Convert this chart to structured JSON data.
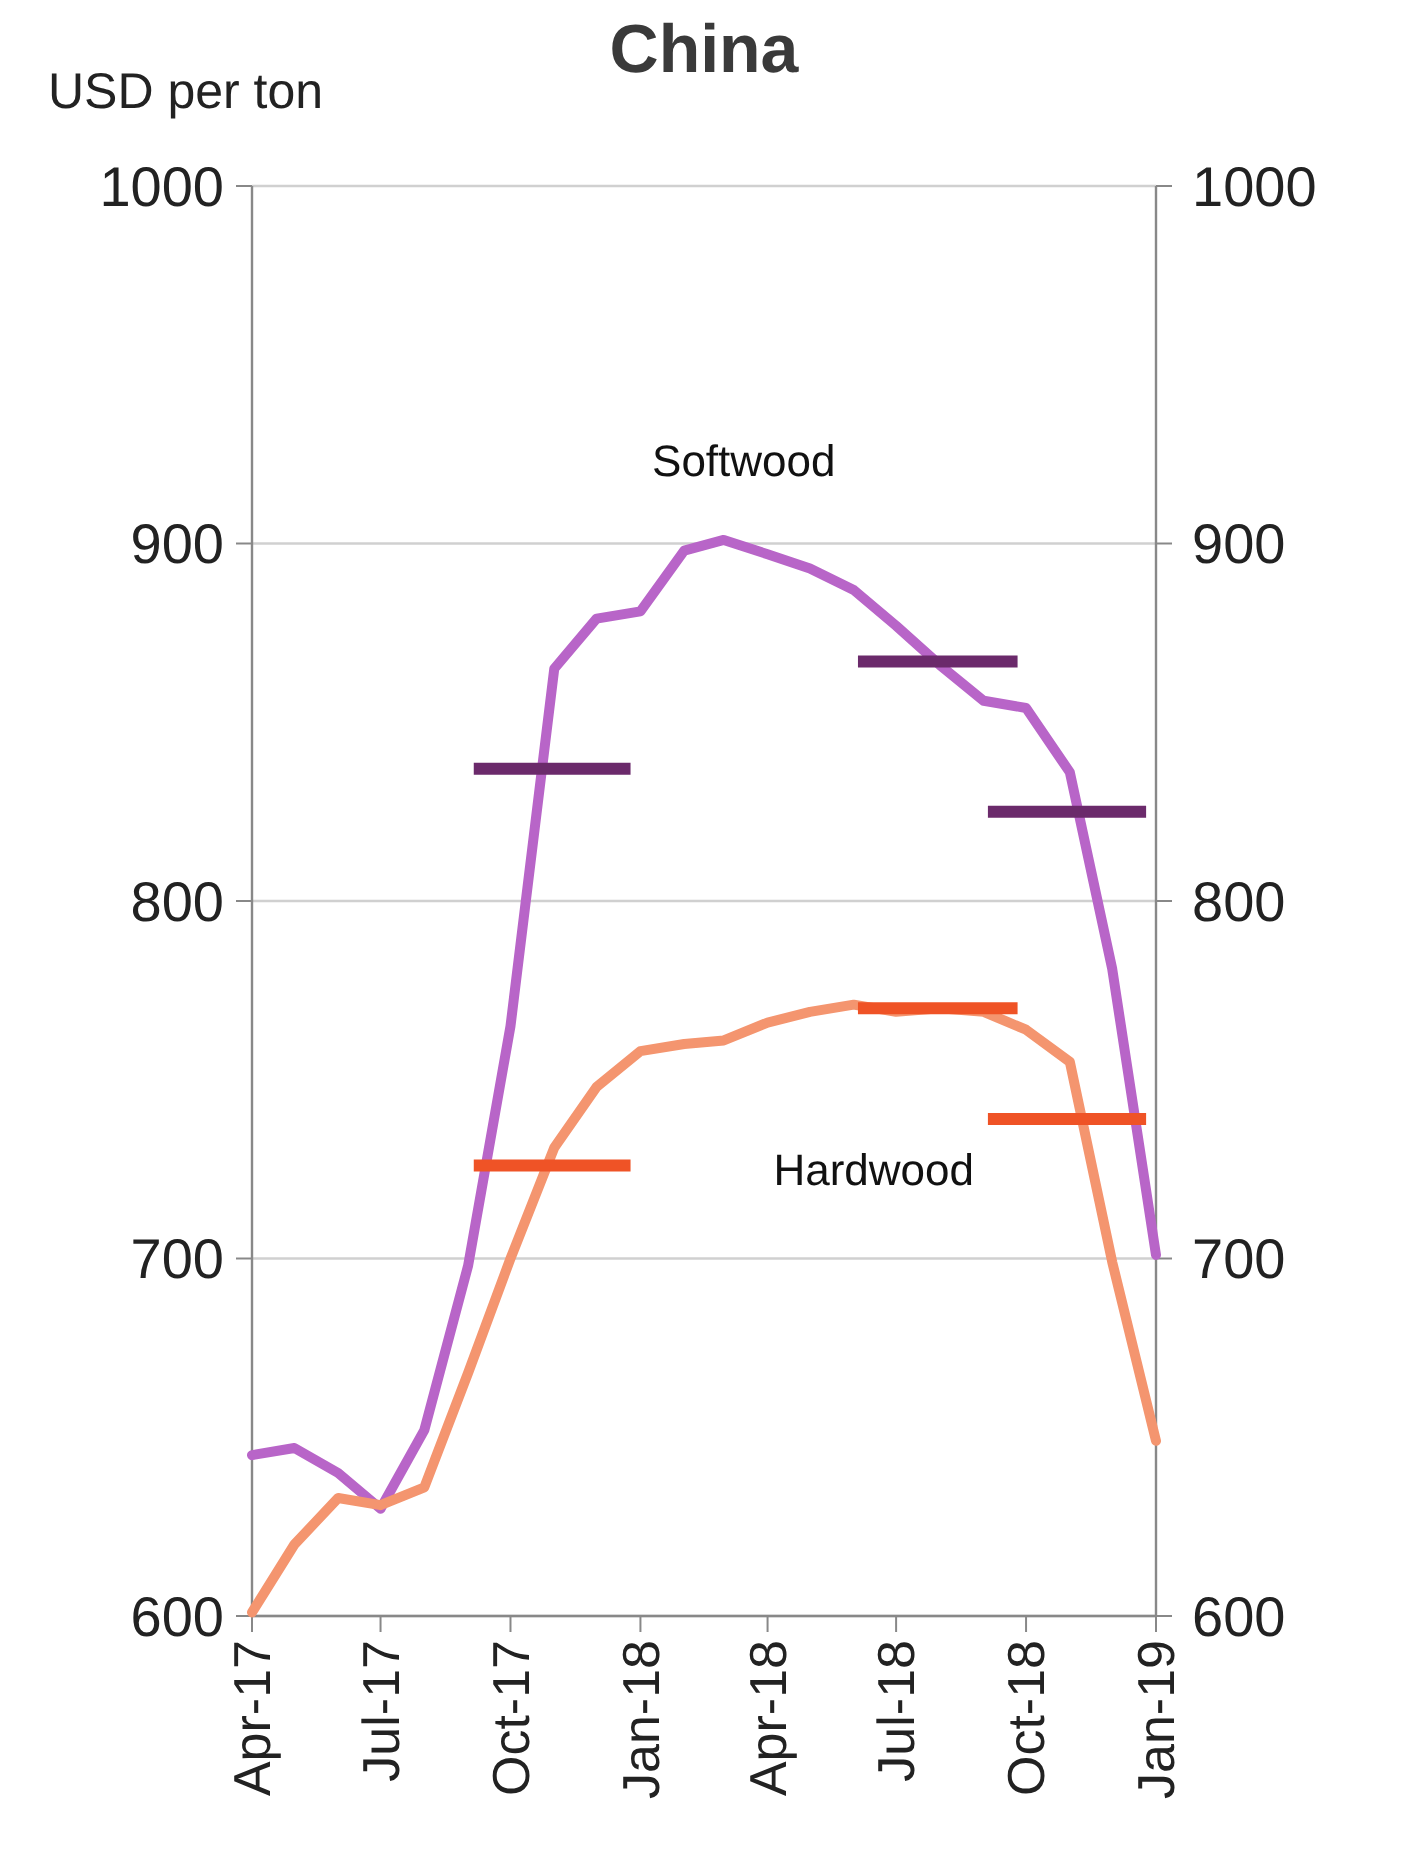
{
  "chart_data": {
    "type": "line",
    "title": "China",
    "ylabel": "USD per ton",
    "x": [
      "2017-04",
      "2017-05",
      "2017-06",
      "2017-07",
      "2017-08",
      "2017-09",
      "2017-10",
      "2017-11",
      "2017-12",
      "2018-01",
      "2018-02",
      "2018-03",
      "2018-04",
      "2018-05",
      "2018-06",
      "2018-07",
      "2018-08",
      "2018-09",
      "2018-10",
      "2018-11",
      "2018-12",
      "2019-01"
    ],
    "series": [
      {
        "name": "Softwood",
        "color": "#b865c8",
        "values": [
          645,
          647,
          640,
          630,
          652,
          698,
          765,
          865,
          879,
          881,
          898,
          901,
          897,
          893,
          887,
          877,
          866,
          856,
          854,
          836,
          781,
          701
        ]
      },
      {
        "name": "Hardwood",
        "color": "#f4956f",
        "values": [
          601,
          620,
          633,
          631,
          636,
          668,
          700,
          731,
          748,
          758,
          760,
          761,
          766,
          769,
          771,
          769,
          770,
          769,
          764,
          755,
          699,
          649
        ]
      },
      {
        "color": "#6b2a6b",
        "x": [
          "2017-09-05",
          "2017-12-25"
        ],
        "values": [
          837,
          837
        ]
      },
      {
        "color": "#6b2a6b",
        "x": [
          "2018-06-04",
          "2018-09-25"
        ],
        "values": [
          867,
          867
        ]
      },
      {
        "color": "#6b2a6b",
        "x": [
          "2018-09-04",
          "2018-12-25"
        ],
        "values": [
          825,
          825
        ]
      },
      {
        "color": "#ef5326",
        "x": [
          "2017-09-05",
          "2017-12-25"
        ],
        "values": [
          726,
          726
        ]
      },
      {
        "color": "#ef5326",
        "x": [
          "2018-06-04",
          "2018-09-25"
        ],
        "values": [
          770,
          770
        ]
      },
      {
        "color": "#ef5326",
        "x": [
          "2018-09-04",
          "2018-12-25"
        ],
        "values": [
          739,
          739
        ]
      }
    ],
    "xlim": [
      "2017-04",
      "2019-01"
    ],
    "xticks": [
      {
        "value": "2017-04",
        "label": "Apr-17"
      },
      {
        "value": "2017-07",
        "label": "Jul-17"
      },
      {
        "value": "2017-10",
        "label": "Oct-17"
      },
      {
        "value": "2018-01",
        "label": "Jan-18"
      },
      {
        "value": "2018-04",
        "label": "Apr-18"
      },
      {
        "value": "2018-07",
        "label": "Jul-18"
      },
      {
        "value": "2018-10",
        "label": "Oct-18"
      },
      {
        "value": "2019-01",
        "label": "Jan-19"
      }
    ],
    "ylim": [
      600,
      1000
    ],
    "yticks": [
      600,
      700,
      800,
      900,
      1000
    ],
    "y2lim": [
      600,
      1000
    ],
    "y2ticks": [
      600,
      700,
      800,
      900,
      1000
    ],
    "grid": "y"
  }
}
